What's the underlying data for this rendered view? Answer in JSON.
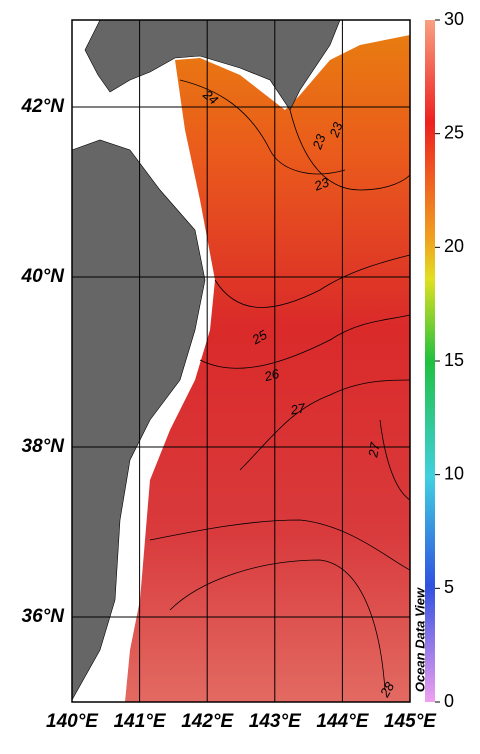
{
  "map": {
    "lon_ticks": [
      "140°E",
      "141°E",
      "142°E",
      "143°E",
      "144°E",
      "145°E"
    ],
    "lat_ticks": [
      "42°N",
      "40°N",
      "38°N",
      "36°N"
    ],
    "lat_values": [
      42,
      40,
      38,
      36
    ],
    "contour_labels": [
      24,
      23,
      23,
      23,
      25,
      26,
      27,
      27,
      28
    ],
    "watermark": "Ocean Data View"
  },
  "colorbar": {
    "ticks": [
      0,
      5,
      10,
      15,
      20,
      25,
      30
    ],
    "range": [
      0,
      30
    ]
  }
}
